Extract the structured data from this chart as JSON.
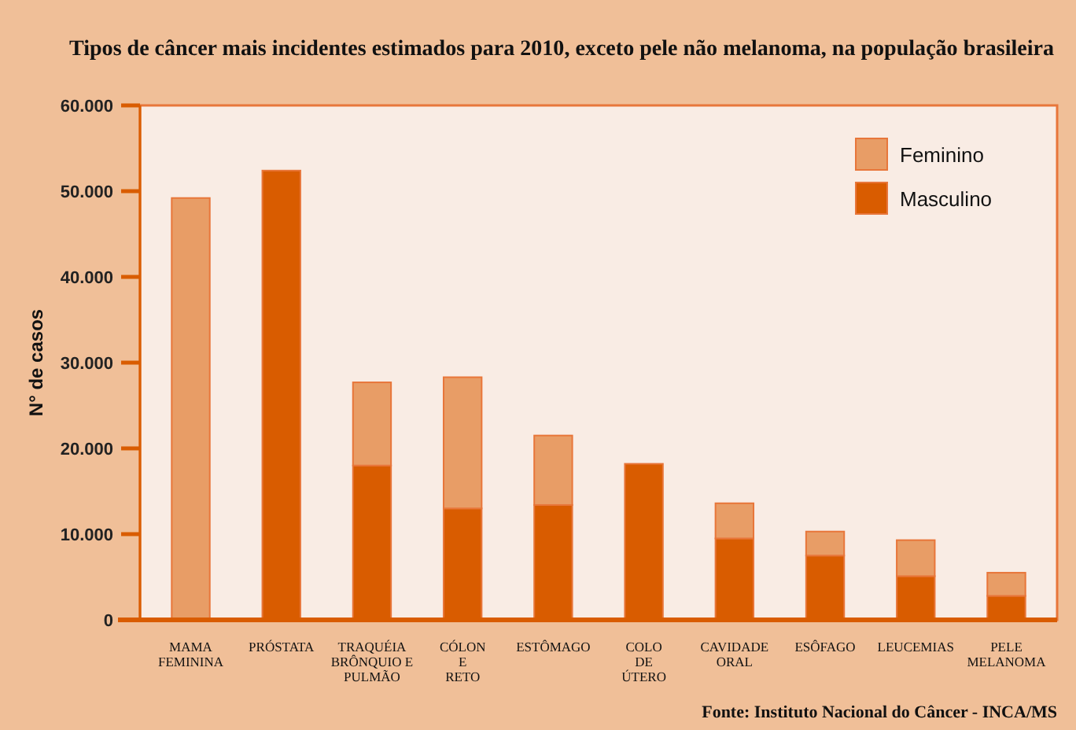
{
  "chart_data": {
    "type": "bar",
    "title": "Tipos de câncer mais incidentes estimados para 2010, exceto pele não melanoma, na população brasileira",
    "ylabel": "N° de casos",
    "categories": [
      "MAMA\nFEMININA",
      "PRÓSTATA",
      "TRAQUÉIA\nBRÔNQUIO E\nPULMÃO",
      "CÓLON\nE\nRETO",
      "ESTÔMAGO",
      "COLO\nDE\nÚTERO",
      "CAVIDADE\nORAL",
      "ESÔFAGO",
      "LEUCEMIAS",
      "PELE\nMELANOMA"
    ],
    "series": [
      {
        "name": "Masculino",
        "color": "#d95c00",
        "values": [
          null,
          52400,
          18000,
          13000,
          13400,
          18200,
          9500,
          7500,
          5100,
          2800
        ]
      },
      {
        "name": "Feminino",
        "color": "#e89d66",
        "values": [
          49200,
          null,
          9700,
          15300,
          8100,
          null,
          4100,
          2800,
          4200,
          2700
        ]
      }
    ],
    "stacked": true,
    "ylim": [
      0,
      60000
    ],
    "yticks": [
      0,
      {
        "value": 10000,
        "label": "10.000"
      },
      {
        "value": 20000,
        "label": "20.000"
      },
      {
        "value": 30000,
        "label": "30.000"
      },
      {
        "value": 40000,
        "label": "40.000"
      },
      {
        "value": 50000,
        "label": "50.000"
      },
      {
        "value": 60000,
        "label": "60.000"
      }
    ],
    "grid": false,
    "legend": "top right",
    "annotations": [
      "Fonte: Instituto Nacional do Câncer - INCA/MS"
    ]
  }
}
